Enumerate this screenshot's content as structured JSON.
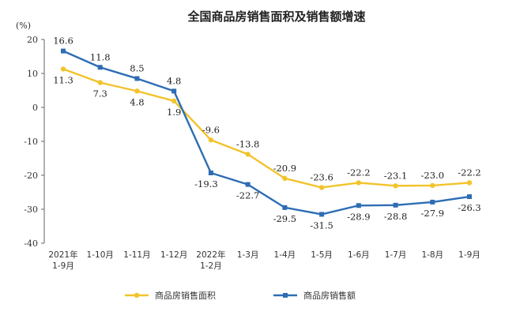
{
  "chart_data": {
    "type": "line",
    "title": "全国商品房销售面积及销售额增速",
    "ylabel": "(%)",
    "xlabel": "",
    "ylim": [
      -40,
      20
    ],
    "yticks": [
      20,
      10,
      0,
      -10,
      -20,
      -30,
      -40
    ],
    "grid": false,
    "legend_position": "bottom",
    "categories": [
      [
        "2021年",
        "1-9月"
      ],
      [
        "1-10月"
      ],
      [
        "1-11月"
      ],
      [
        "1-12月"
      ],
      [
        "2022年",
        "1-2月"
      ],
      [
        "1-3月"
      ],
      [
        "1-4月"
      ],
      [
        "1-5月"
      ],
      [
        "1-6月"
      ],
      [
        "1-7月"
      ],
      [
        "1-8月"
      ],
      [
        "1-9月"
      ]
    ],
    "series": [
      {
        "name": "商品房销售面积",
        "color": "#F2C32B",
        "marker": "circle",
        "values": [
          11.3,
          7.3,
          4.8,
          1.9,
          -9.6,
          -13.8,
          -20.9,
          -23.6,
          -22.2,
          -23.1,
          -23.0,
          -22.2
        ],
        "labels": [
          "11.3",
          "7.3",
          "4.8",
          "1.9",
          "-9.6",
          "-13.8",
          "-20.9",
          "-23.6",
          "-22.2",
          "-23.1",
          "-23.0",
          "-22.2"
        ]
      },
      {
        "name": "商品房销售额",
        "color": "#2E6DB4",
        "marker": "square",
        "values": [
          16.6,
          11.8,
          8.5,
          4.8,
          -19.3,
          -22.7,
          -29.5,
          -31.5,
          -28.9,
          -28.8,
          -27.9,
          -26.3
        ],
        "labels": [
          "16.6",
          "11.8",
          "8.5",
          "4.8",
          "-19.3",
          "-22.7",
          "-29.5",
          "-31.5",
          "-28.9",
          "-28.8",
          "-27.9",
          "-26.3"
        ]
      }
    ]
  }
}
